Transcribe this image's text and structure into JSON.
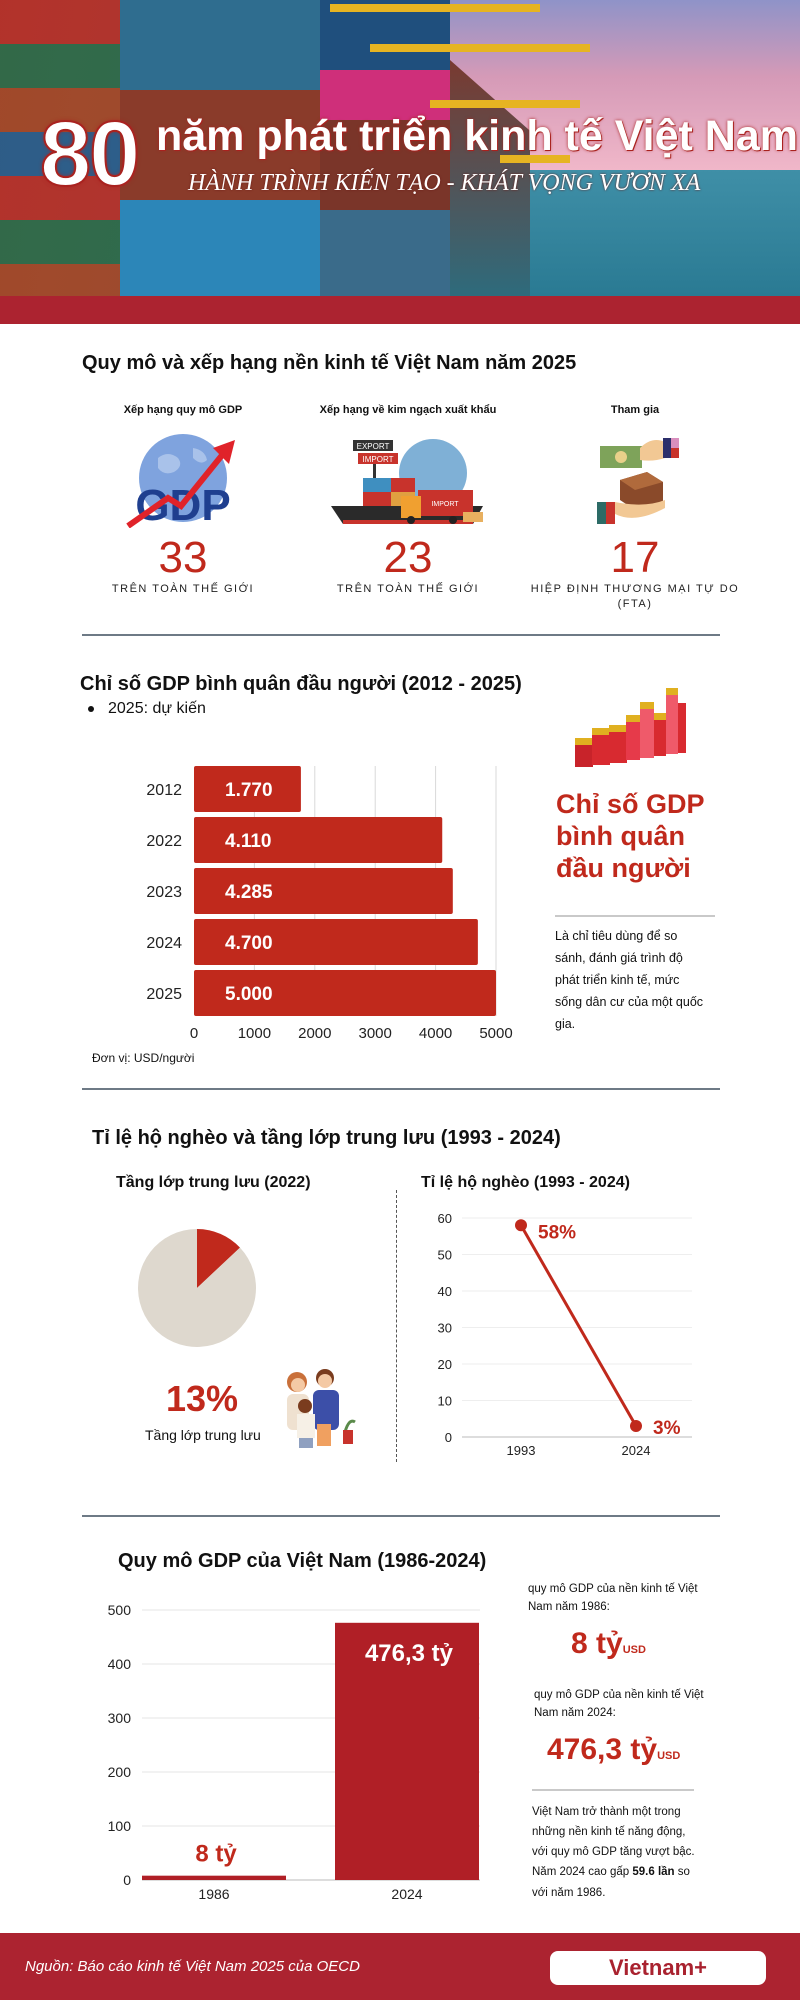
{
  "header": {
    "number": "80",
    "title": "năm phát triển kinh tế Việt Nam",
    "subtitle": "HÀNH TRÌNH KIẾN TẠO - KHÁT VỌNG VƯƠN XA"
  },
  "section_scale": {
    "title": "Quy mô và xếp hạng nền kinh tế Việt Nam năm 2025",
    "items": [
      {
        "label": "Xếp hạng quy mô GDP",
        "icon": "gdp-globe-icon",
        "value": "33",
        "caption": "TRÊN TOÀN THẾ GIỚI"
      },
      {
        "label": "Xếp hạng về kim ngạch xuất khẩu",
        "icon": "export-import-ship-icon",
        "value": "23",
        "caption": "TRÊN TOÀN THẾ GIỚI"
      },
      {
        "label": "Tham gia",
        "icon": "trade-exchange-icon",
        "value": "17",
        "caption": "HIỆP ĐỊNH THƯƠNG MẠI TỰ DO (FTA)"
      }
    ]
  },
  "section_gdp_per_capita": {
    "title": "Chỉ số GDP bình quân đầu người  (2012 - 2025)",
    "bullet": "2025: dự kiến",
    "unit": "Đơn vị: USD/người",
    "side_title": "Chỉ số GDP bình quân đầu người",
    "side_description": "Là chỉ tiêu dùng để so sánh, đánh giá trình độ phát triển kinh tế, mức sống dân cư của một quốc gia.",
    "side_icon": "bar-growth-icon"
  },
  "section_poverty": {
    "title": "Tỉ lệ hộ nghèo và tầng lớp trung lưu (1993 - 2024)",
    "middle_class": {
      "subtitle": "Tầng lớp trung lưu (2022)",
      "percent_label": "13%",
      "caption": "Tầng lớp trung lưu",
      "icon": "family-icon"
    },
    "poverty": {
      "subtitle": "Tỉ lệ hộ nghèo (1993 - 2024)"
    }
  },
  "section_gdp_size": {
    "title": "Quy mô GDP của Việt Nam (1986-2024)",
    "note1_text": "quy mô GDP của nền kinh tế Việt Nam năm 1986:",
    "note1_value": "8 tỷ",
    "note1_unit": "USD",
    "note2_text": "quy mô GDP của nền kinh tế Việt Nam năm 2024:",
    "note2_value": "476,3 tỷ",
    "note2_unit": "USD",
    "summary_before": "Việt Nam trở thành một trong những nền kinh tế năng động, với quy mô GDP tăng vượt bậc. Năm 2024 cao gấp ",
    "summary_bold": "59.6 lần",
    "summary_after": " so với năm 1986."
  },
  "footer": {
    "source": "Nguồn: Báo cáo kinh tế Việt Nam 2025 của OECD",
    "logo": "Vietnam+"
  },
  "colors": {
    "accent_red": "#c0291c",
    "band_red": "#ac2330",
    "gdp_bar_red": "#b01f26",
    "pie_rest": "#ded8ce"
  },
  "chart_data": [
    {
      "id": "gdp_per_capita",
      "type": "bar",
      "orientation": "horizontal",
      "title": "Chỉ số GDP bình quân đầu người  (2012 - 2025)",
      "categories": [
        "2012",
        "2022",
        "2023",
        "2024",
        "2025"
      ],
      "values": [
        1770,
        4110,
        4285,
        4700,
        5000
      ],
      "data_labels": [
        "1.770",
        "4.110",
        "4.285",
        "4.700",
        "5.000"
      ],
      "xlim": [
        0,
        5000
      ],
      "xticks": [
        "0",
        "1000",
        "2000",
        "3000",
        "4000",
        "5000"
      ],
      "xlabel": "Đơn vị: USD/người",
      "grid": true
    },
    {
      "id": "middle_class",
      "type": "pie",
      "title": "Tầng lớp trung lưu (2022)",
      "slices": [
        {
          "label": "Tầng lớp trung lưu",
          "value": 13
        },
        {
          "label": "Khác",
          "value": 87
        }
      ]
    },
    {
      "id": "poverty_rate",
      "type": "line",
      "title": "Tỉ lệ hộ nghèo (1993 - 2024)",
      "x": [
        "1993",
        "2024"
      ],
      "values": [
        58,
        3
      ],
      "data_labels": [
        "58%",
        "3%"
      ],
      "ylim": [
        0,
        60
      ],
      "yticks": [
        "0",
        "10",
        "20",
        "30",
        "40",
        "50",
        "60"
      ],
      "grid": true
    },
    {
      "id": "gdp_size",
      "type": "bar",
      "orientation": "vertical",
      "title": "Quy mô GDP của Việt Nam (1986-2024)",
      "categories": [
        "1986",
        "2024"
      ],
      "values": [
        8,
        476.3
      ],
      "data_labels": [
        "8 tỷ",
        "476,3 tỷ"
      ],
      "ylim": [
        0,
        500
      ],
      "yticks": [
        "0",
        "100",
        "200",
        "300",
        "400",
        "500"
      ],
      "grid": true
    }
  ]
}
